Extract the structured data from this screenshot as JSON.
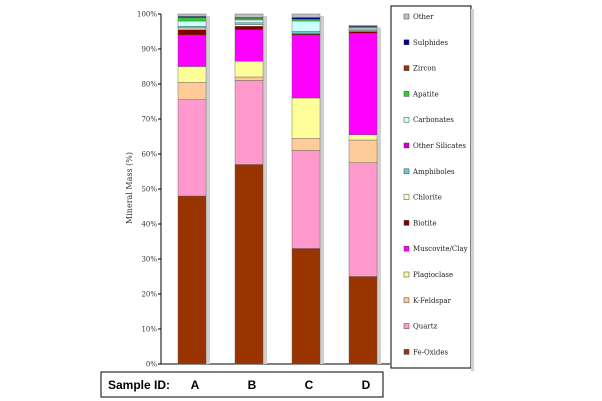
{
  "chart_data": {
    "type": "bar",
    "stacked": true,
    "percent": true,
    "ylabel": "Mineral Mass (%)",
    "ylim": [
      0,
      100
    ],
    "y_ticks": [
      "0%",
      "10%",
      "20%",
      "30%",
      "40%",
      "50%",
      "60%",
      "70%",
      "80%",
      "90%",
      "100%"
    ],
    "sample_id_label": "Sample ID:",
    "categories": [
      "A",
      "B",
      "C",
      "D"
    ],
    "series": [
      {
        "name": "Fe-Oxides",
        "color": "#993300",
        "values": [
          48.0,
          57.0,
          33.0,
          25.0
        ]
      },
      {
        "name": "Quartz",
        "color": "#ff99cc",
        "values": [
          27.5,
          24.0,
          28.0,
          32.5
        ]
      },
      {
        "name": "K-Feldspar",
        "color": "#ffcc99",
        "values": [
          5.0,
          1.0,
          3.5,
          6.5
        ]
      },
      {
        "name": "Plagioclase",
        "color": "#ffff99",
        "values": [
          4.5,
          4.5,
          11.5,
          1.5
        ]
      },
      {
        "name": "Muscovite/Clay",
        "color": "#ff00ff",
        "values": [
          9.0,
          9.0,
          18.0,
          29.0
        ]
      },
      {
        "name": "Biotite",
        "color": "#800000",
        "values": [
          1.5,
          1.0,
          0.3,
          0.5
        ]
      },
      {
        "name": "Chlorite",
        "color": "#ffffcc",
        "values": [
          0.5,
          0.5,
          0.2,
          0.3
        ]
      },
      {
        "name": "Amphiboles",
        "color": "#66cccc",
        "values": [
          0.5,
          0.5,
          0.5,
          0.2
        ]
      },
      {
        "name": "Other Silicates",
        "color": "#cc00cc",
        "values": [
          0.0,
          0.0,
          0.0,
          0.0
        ]
      },
      {
        "name": "Carbonates",
        "color": "#ccffff",
        "values": [
          1.5,
          0.8,
          3.0,
          0.5
        ]
      },
      {
        "name": "Apatite",
        "color": "#33cc33",
        "values": [
          1.0,
          0.5,
          0.5,
          0.3
        ]
      },
      {
        "name": "Zircon",
        "color": "#993300",
        "values": [
          0.0,
          0.0,
          0.0,
          0.0
        ]
      },
      {
        "name": "Sulphides",
        "color": "#000099",
        "values": [
          0.3,
          0.2,
          0.5,
          0.2
        ]
      },
      {
        "name": "Other",
        "color": "#c0c0c0",
        "values": [
          0.7,
          1.0,
          1.0,
          0.3
        ]
      }
    ],
    "legend_order": [
      "Other",
      "Sulphides",
      "Zircon",
      "Apatite",
      "Carbonates",
      "Other Silicates",
      "Amphiboles",
      "Chlorite",
      "Biotite",
      "Muscovite/Clay",
      "Plagioclase",
      "K-Feldspar",
      "Quartz",
      "Fe-Oxides"
    ],
    "legend_placement": "right",
    "grid": false
  }
}
